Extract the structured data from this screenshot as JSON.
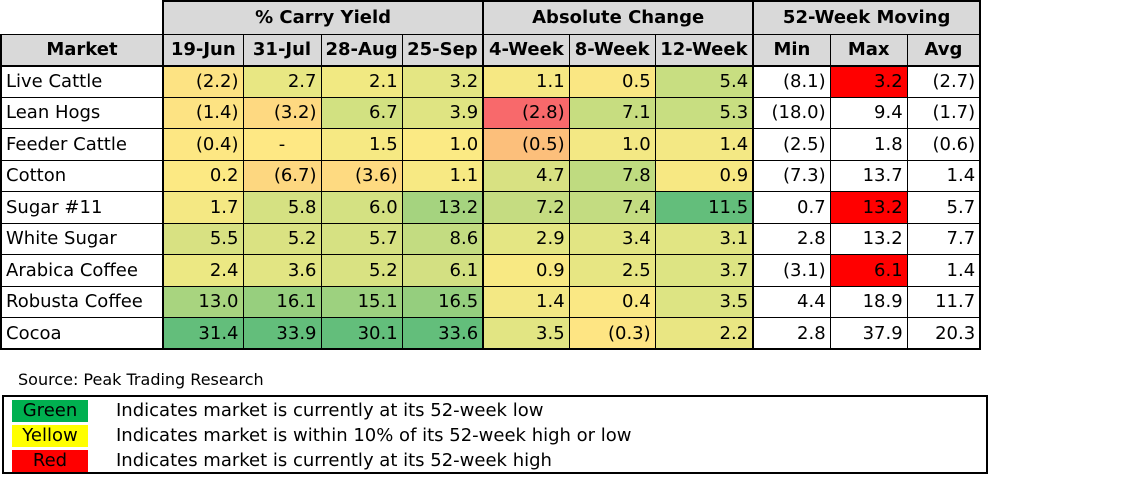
{
  "group_headers": {
    "carry_yield": "% Carry Yield",
    "absolute_change": "Absolute Change",
    "moving": "52-Week Moving"
  },
  "column_headers": [
    "Market",
    "19-Jun",
    "31-Jul",
    "28-Aug",
    "25-Sep",
    "4-Week",
    "8-Week",
    "12-Week",
    "Min",
    "Max",
    "Avg"
  ],
  "rows": [
    {
      "market": "Live Cattle",
      "values": [
        "(2.2)",
        "2.7",
        "2.1",
        "3.2",
        "1.1",
        "0.5",
        "5.4",
        "(8.1)",
        "3.2",
        "(2.7)"
      ],
      "colors": [
        "#fde383",
        "#e8e783",
        "#f1e982",
        "#e4e683",
        "#f6e883",
        "#fae783",
        "#c8de81",
        "#ffffff",
        "#ff0000",
        "#ffffff"
      ]
    },
    {
      "market": "Lean Hogs",
      "values": [
        "(1.4)",
        "(3.2)",
        "6.7",
        "3.9",
        "(2.8)",
        "7.1",
        "5.3",
        "(18.0)",
        "9.4",
        "(1.7)"
      ],
      "colors": [
        "#fde383",
        "#fed981",
        "#d2e181",
        "#dfe482",
        "#f8696b",
        "#c7dd80",
        "#c8de81",
        "#ffffff",
        "#ffffff",
        "#ffffff"
      ]
    },
    {
      "market": "Feeder Cattle",
      "values": [
        "(0.4)",
        "-",
        "1.5",
        "1.0",
        "(0.5)",
        "1.0",
        "1.4",
        "(2.5)",
        "1.8",
        "(0.6)"
      ],
      "colors": [
        "#fde783",
        "#fee884",
        "#f6e983",
        "#fbea84",
        "#fcbf7b",
        "#f3e884",
        "#f3e884",
        "#ffffff",
        "#ffffff",
        "#ffffff"
      ]
    },
    {
      "market": "Cotton",
      "values": [
        "0.2",
        "(6.7)",
        "(3.6)",
        "1.1",
        "4.7",
        "7.8",
        "0.9",
        "(7.3)",
        "13.7",
        "1.4"
      ],
      "colors": [
        "#fce983",
        "#fdd780",
        "#feda81",
        "#f7e983",
        "#d8e182",
        "#bfdb80",
        "#f7e883",
        "#ffffff",
        "#ffffff",
        "#ffffff"
      ]
    },
    {
      "market": "Sugar #11",
      "values": [
        "1.7",
        "5.8",
        "6.0",
        "13.2",
        "7.2",
        "7.4",
        "11.5",
        "0.7",
        "13.2",
        "5.7"
      ],
      "colors": [
        "#f4e883",
        "#d5e182",
        "#d4e182",
        "#a5d37f",
        "#c5dc81",
        "#c3dc81",
        "#63be7b",
        "#ffffff",
        "#ff0000",
        "#ffffff"
      ]
    },
    {
      "market": "White Sugar",
      "values": [
        "5.5",
        "5.2",
        "5.7",
        "8.6",
        "2.9",
        "3.4",
        "3.1",
        "2.8",
        "13.2",
        "7.7"
      ],
      "colors": [
        "#d8e182",
        "#dae282",
        "#d6e182",
        "#c3dc81",
        "#e4e683",
        "#e2e583",
        "#e1e583",
        "#ffffff",
        "#ffffff",
        "#ffffff"
      ]
    },
    {
      "market": "Arabica Coffee",
      "values": [
        "2.4",
        "3.6",
        "5.2",
        "6.1",
        "0.9",
        "2.5",
        "3.7",
        "(3.1)",
        "6.1",
        "1.4"
      ],
      "colors": [
        "#ece883",
        "#e2e583",
        "#d9e282",
        "#d3e082",
        "#f8e983",
        "#e7e683",
        "#dde483",
        "#ffffff",
        "#ff0000",
        "#ffffff"
      ]
    },
    {
      "market": "Robusta Coffee",
      "values": [
        "13.0",
        "16.1",
        "15.1",
        "16.5",
        "1.4",
        "0.4",
        "3.5",
        "4.4",
        "18.9",
        "11.7"
      ],
      "colors": [
        "#a8d47f",
        "#97cf7e",
        "#9dd17f",
        "#95ce7e",
        "#f3e884",
        "#fae884",
        "#dde483",
        "#ffffff",
        "#ffffff",
        "#ffffff"
      ]
    },
    {
      "market": "Cocoa",
      "values": [
        "31.4",
        "33.9",
        "30.1",
        "33.6",
        "3.5",
        "(0.3)",
        "2.2",
        "2.8",
        "37.9",
        "20.3"
      ],
      "colors": [
        "#63be7b",
        "#63be7b",
        "#63be7b",
        "#63be7b",
        "#e2e583",
        "#fee583",
        "#e9e683",
        "#ffffff",
        "#ffffff",
        "#ffffff"
      ]
    }
  ],
  "source": "Source: Peak Trading Research",
  "legend": [
    {
      "label": "Green",
      "text": "Indicates market is currently at its 52-week low",
      "color": "#00b050"
    },
    {
      "label": "Yellow",
      "text": "Indicates market is within 10% of its 52-week high or low",
      "color": "#ffff00"
    },
    {
      "label": "Red",
      "text": "Indicates market is currently at its 52-week high",
      "color": "#ff0000"
    }
  ]
}
